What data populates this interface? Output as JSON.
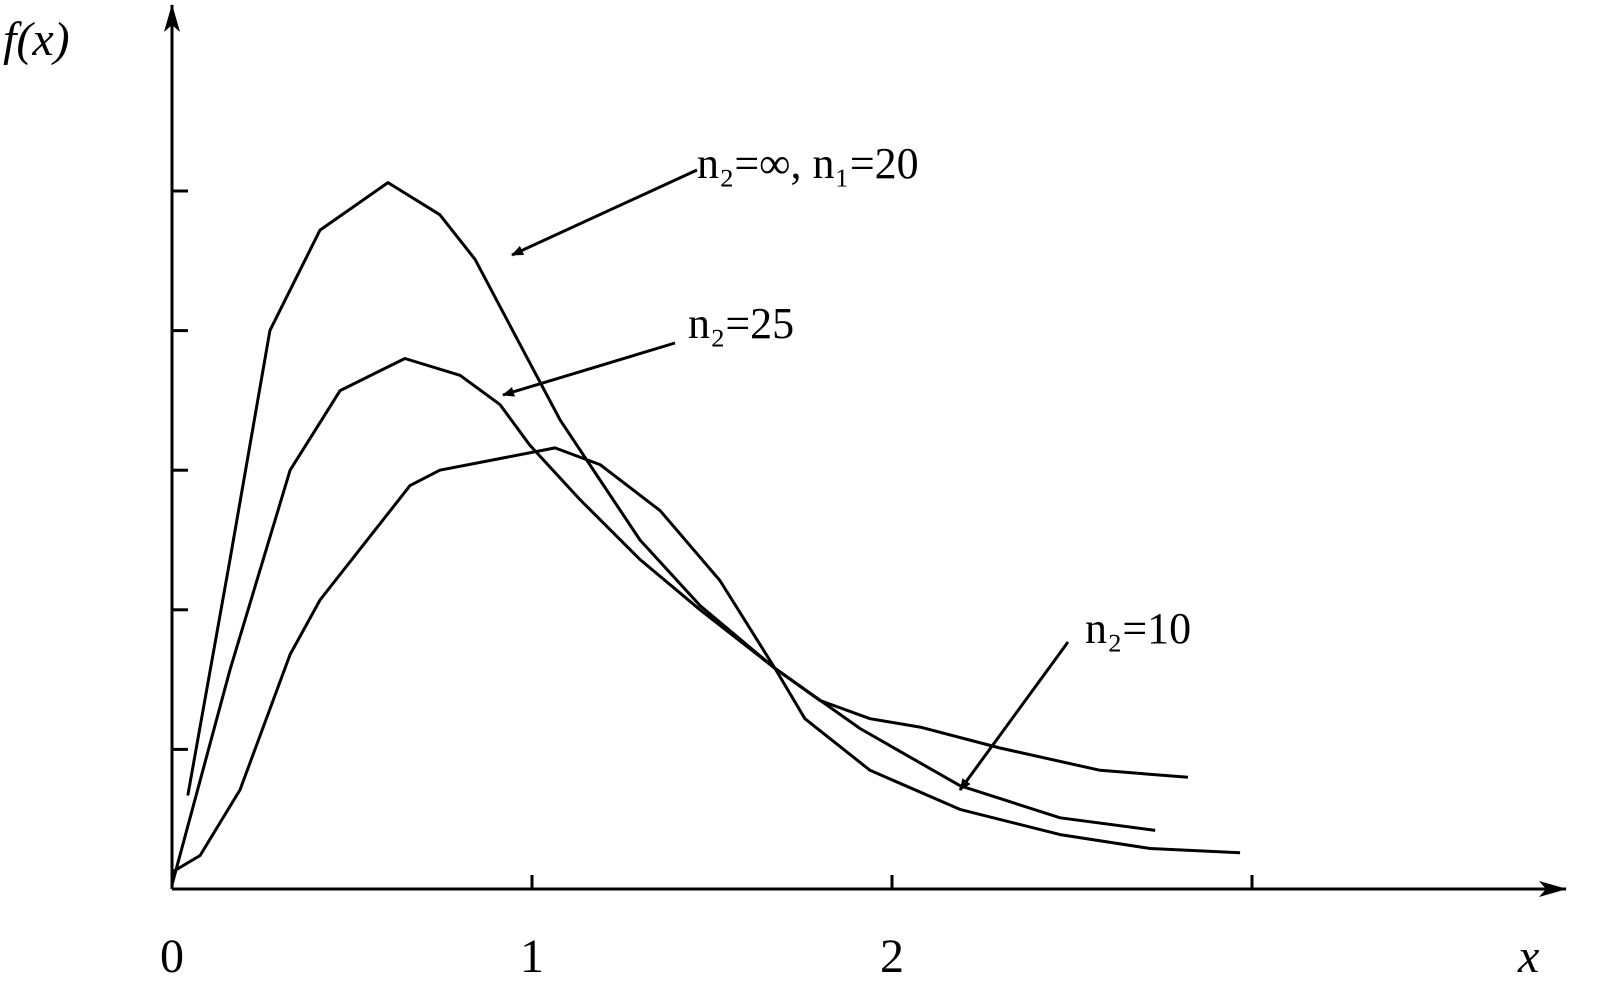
{
  "chart_data": {
    "type": "line",
    "y_label": "f(x)",
    "x_label": "x",
    "xlim": [
      0,
      3.87
    ],
    "ylim": [
      0,
      6.3
    ],
    "xticks": [
      0,
      1,
      2,
      {
        "value": 3,
        "label": null
      }
    ],
    "yticks": [
      {
        "value": 1,
        "label": null
      },
      {
        "value": 2,
        "label": null
      },
      {
        "value": 3,
        "label": null
      },
      {
        "value": 4,
        "label": null
      },
      {
        "value": 5,
        "label": null
      }
    ],
    "series": [
      {
        "name": "n₂=∞, n₁=20",
        "color": "#000000",
        "x": [
          0.044,
          0.161,
          0.272,
          0.411,
          0.6,
          0.744,
          0.842,
          0.967,
          1.078,
          1.189,
          1.3,
          1.467,
          1.675,
          1.758,
          1.939,
          2.189,
          2.467,
          2.717,
          2.967
        ],
        "values": [
          0.67,
          2.36,
          4.0,
          4.72,
          5.06,
          4.83,
          4.51,
          3.9,
          3.36,
          2.93,
          2.5,
          2.03,
          1.58,
          1.22,
          0.85,
          0.57,
          0.39,
          0.29,
          0.26
        ]
      },
      {
        "name": "n₂=25",
        "color": "#000000",
        "x": [
          0,
          0.161,
          0.328,
          0.467,
          0.647,
          0.8,
          0.911,
          0.994,
          1.133,
          1.3,
          1.467,
          1.675,
          1.8,
          1.939,
          2.078,
          2.3,
          2.578,
          2.822
        ],
        "values": [
          0.03,
          1.57,
          3.0,
          3.57,
          3.8,
          3.68,
          3.47,
          3.18,
          2.79,
          2.36,
          2.0,
          1.58,
          1.35,
          1.22,
          1.16,
          1.01,
          0.85,
          0.8
        ]
      },
      {
        "name": "n₂=10",
        "color": "#000000",
        "x": [
          0,
          0.078,
          0.189,
          0.328,
          0.411,
          0.661,
          0.744,
          1.064,
          1.189,
          1.356,
          1.522,
          1.675,
          1.911,
          2.189,
          2.467,
          2.731
        ],
        "values": [
          0.12,
          0.24,
          0.71,
          1.68,
          2.07,
          2.89,
          3.0,
          3.16,
          3.04,
          2.71,
          2.21,
          1.58,
          1.15,
          0.74,
          0.51,
          0.42
        ]
      }
    ]
  }
}
